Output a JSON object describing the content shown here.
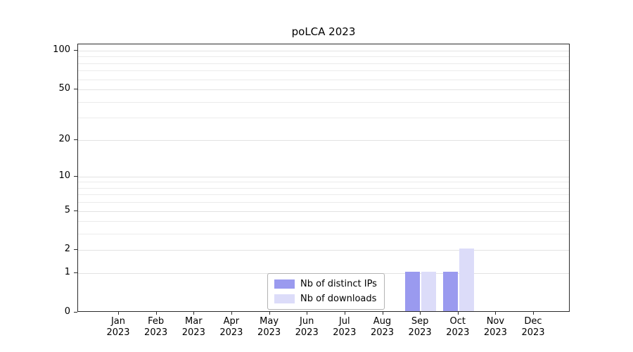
{
  "title": "poLCA 2023",
  "chart_data": {
    "type": "bar",
    "title": "poLCA 2023",
    "categories": [
      "Jan",
      "Feb",
      "Mar",
      "Apr",
      "May",
      "Jun",
      "Jul",
      "Aug",
      "Sep",
      "Oct",
      "Nov",
      "Dec"
    ],
    "year": "2023",
    "series": [
      {
        "name": "Nb of distinct IPs",
        "color": "#9a9aef",
        "values": [
          0,
          0,
          0,
          0,
          0,
          0,
          0,
          0,
          1,
          1,
          0,
          0
        ]
      },
      {
        "name": "Nb of downloads",
        "color": "#dcdcf9",
        "values": [
          0,
          0,
          0,
          0,
          0,
          0,
          0,
          0,
          1,
          2,
          0,
          0
        ]
      }
    ],
    "y_ticks": [
      0,
      1,
      2,
      5,
      10,
      20,
      50,
      100
    ],
    "grid_values": [
      1,
      2,
      3,
      4,
      5,
      6,
      7,
      8,
      9,
      10,
      20,
      30,
      40,
      50,
      60,
      70,
      80,
      90,
      100
    ],
    "scale": "log1p",
    "ylim": [
      0,
      100
    ],
    "grid": "on",
    "legend_position": "bottom-center"
  }
}
